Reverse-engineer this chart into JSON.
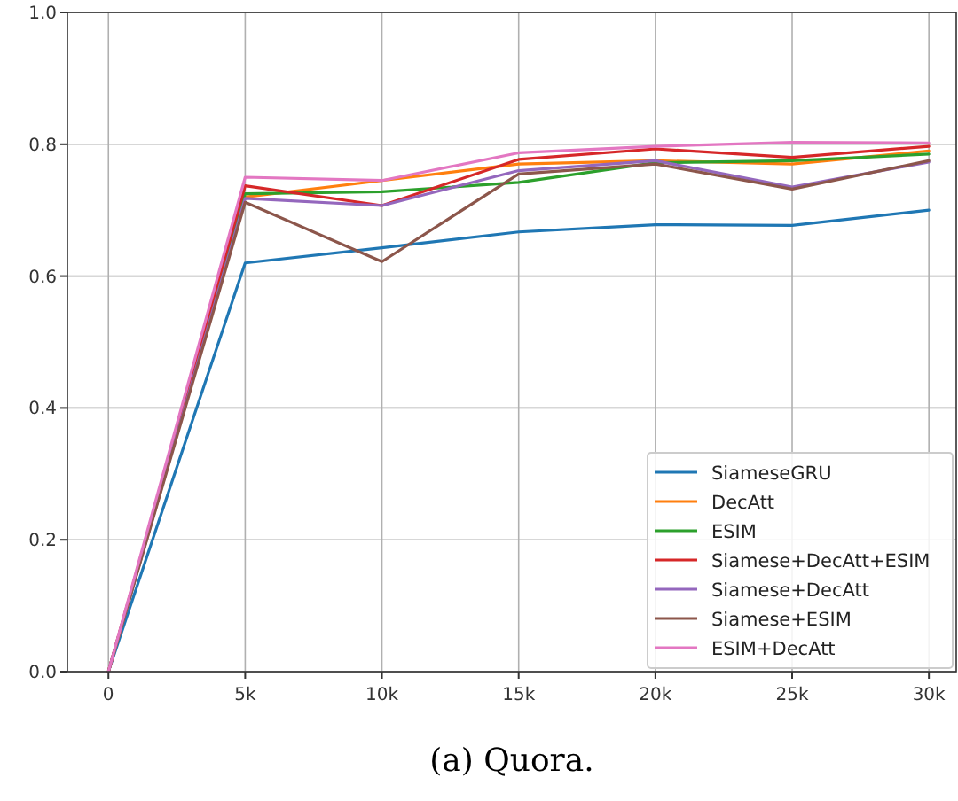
{
  "chart_data": {
    "type": "line",
    "x": [
      0,
      5000,
      10000,
      15000,
      20000,
      25000,
      30000
    ],
    "xlim": [
      -1500,
      31000
    ],
    "xticks": [
      0,
      {
        "value": 5000,
        "label": "5k"
      },
      {
        "value": 10000,
        "label": "10k"
      },
      {
        "value": 15000,
        "label": "15k"
      },
      {
        "value": 20000,
        "label": "20k"
      },
      {
        "value": 25000,
        "label": "25k"
      },
      {
        "value": 30000,
        "label": "30k"
      }
    ],
    "ylim": [
      0,
      1
    ],
    "yticks": [
      {
        "value": 0,
        "label": "0.0"
      },
      0.2,
      0.4,
      0.6,
      0.8,
      {
        "value": 1,
        "label": "1.0"
      }
    ],
    "grid": true,
    "legend": "bottom right",
    "line_style": "solid",
    "marker": "none",
    "annotations": [
      "(a) Quora."
    ],
    "series": [
      {
        "name": "SiameseGRU",
        "color": "#1f77b4",
        "values": [
          0,
          0.62,
          0.643,
          0.667,
          0.678,
          0.677,
          0.7
        ]
      },
      {
        "name": "DecAtt",
        "color": "#ff7f0e",
        "values": [
          0,
          0.72,
          0.745,
          0.77,
          0.775,
          0.77,
          0.79
        ]
      },
      {
        "name": "ESIM",
        "color": "#2ca02c",
        "values": [
          0,
          0.725,
          0.728,
          0.742,
          0.772,
          0.775,
          0.785
        ]
      },
      {
        "name": "Siamese+DecAtt+ESIM",
        "color": "#d62728",
        "values": [
          0,
          0.737,
          0.707,
          0.777,
          0.793,
          0.78,
          0.797
        ]
      },
      {
        "name": "Siamese+DecAtt",
        "color": "#9467bd",
        "values": [
          0,
          0.718,
          0.707,
          0.76,
          0.775,
          0.735,
          0.773
        ]
      },
      {
        "name": "Siamese+ESIM",
        "color": "#8c564b",
        "values": [
          0,
          0.712,
          0.622,
          0.755,
          0.77,
          0.732,
          0.775
        ]
      },
      {
        "name": "ESIM+DecAtt",
        "color": "#e377c2",
        "values": [
          0,
          0.75,
          0.745,
          0.787,
          0.797,
          0.803,
          0.802
        ]
      }
    ]
  }
}
